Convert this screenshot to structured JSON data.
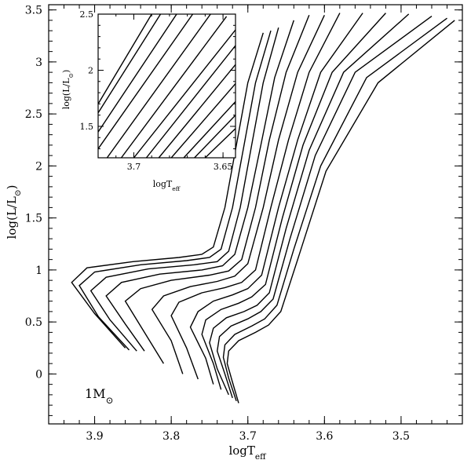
{
  "chart_data": [
    {
      "type": "line",
      "role": "main",
      "xlabel": "logT_eff",
      "ylabel": "log(L/L_⊙)",
      "xlim": [
        3.96,
        3.42
      ],
      "ylim": [
        -0.48,
        3.55
      ],
      "x_reversed": true,
      "x_ticks": [
        "3.9",
        "3.8",
        "3.7",
        "3.6",
        "3.5"
      ],
      "y_ticks": [
        "0",
        "0.5",
        "1",
        "1.5",
        "2",
        "2.5",
        "3",
        "3.5"
      ],
      "x_tick_values": [
        3.9,
        3.8,
        3.7,
        3.6,
        3.5
      ],
      "y_tick_values": [
        0,
        0.5,
        1,
        1.5,
        2,
        2.5,
        3,
        3.5
      ],
      "annotation": {
        "main": "1M",
        "sub": "⊙"
      },
      "series": [
        {
          "x": [
            3.86,
            3.9,
            3.93,
            3.91,
            3.85,
            3.79,
            3.76,
            3.745,
            3.73,
            3.715,
            3.7,
            3.68
          ],
          "y": [
            0.25,
            0.58,
            0.88,
            1.02,
            1.08,
            1.12,
            1.15,
            1.22,
            1.6,
            2.2,
            2.8,
            3.28
          ]
        },
        {
          "x": [
            3.855,
            3.895,
            3.92,
            3.9,
            3.84,
            3.78,
            3.75,
            3.735,
            3.72,
            3.705,
            3.69,
            3.67
          ],
          "y": [
            0.23,
            0.55,
            0.85,
            0.98,
            1.05,
            1.09,
            1.12,
            1.2,
            1.6,
            2.2,
            2.8,
            3.3
          ]
        },
        {
          "x": [
            3.845,
            3.88,
            3.905,
            3.885,
            3.83,
            3.77,
            3.74,
            3.725,
            3.71,
            3.695,
            3.68,
            3.66
          ],
          "y": [
            0.22,
            0.52,
            0.8,
            0.93,
            1.01,
            1.05,
            1.08,
            1.18,
            1.6,
            2.2,
            2.8,
            3.33
          ]
        },
        {
          "x": [
            3.835,
            3.86,
            3.885,
            3.865,
            3.815,
            3.76,
            3.733,
            3.717,
            3.7,
            3.683,
            3.665,
            3.64
          ],
          "y": [
            0.22,
            0.48,
            0.75,
            0.88,
            0.96,
            1.0,
            1.04,
            1.15,
            1.6,
            2.2,
            2.85,
            3.4
          ]
        },
        {
          "x": [
            3.81,
            3.835,
            3.86,
            3.84,
            3.8,
            3.75,
            3.725,
            3.708,
            3.69,
            3.672,
            3.65,
            3.62
          ],
          "y": [
            0.1,
            0.4,
            0.7,
            0.82,
            0.9,
            0.95,
            0.99,
            1.1,
            1.6,
            2.25,
            2.9,
            3.45
          ]
        },
        {
          "x": [
            3.785,
            3.8,
            3.825,
            3.81,
            3.775,
            3.74,
            3.717,
            3.7,
            3.68,
            3.66,
            3.635,
            3.6
          ],
          "y": [
            0.0,
            0.32,
            0.62,
            0.75,
            0.84,
            0.89,
            0.94,
            1.06,
            1.6,
            2.25,
            2.9,
            3.45
          ]
        },
        {
          "x": [
            3.765,
            3.78,
            3.8,
            3.79,
            3.76,
            3.73,
            3.708,
            3.69,
            3.67,
            3.647,
            3.62,
            3.58
          ],
          "y": [
            -0.05,
            0.25,
            0.56,
            0.69,
            0.78,
            0.83,
            0.88,
            1.0,
            1.6,
            2.25,
            2.9,
            3.47
          ]
        },
        {
          "x": [
            3.745,
            3.755,
            3.775,
            3.765,
            3.745,
            3.72,
            3.7,
            3.682,
            3.66,
            3.635,
            3.605,
            3.55
          ],
          "y": [
            -0.1,
            0.15,
            0.45,
            0.6,
            0.7,
            0.76,
            0.82,
            0.95,
            1.6,
            2.25,
            2.9,
            3.47
          ]
        },
        {
          "x": [
            3.735,
            3.745,
            3.76,
            3.755,
            3.735,
            3.712,
            3.695,
            3.677,
            3.655,
            3.628,
            3.59,
            3.52
          ],
          "y": [
            -0.15,
            0.1,
            0.38,
            0.52,
            0.62,
            0.68,
            0.74,
            0.86,
            1.5,
            2.2,
            2.9,
            3.47
          ]
        },
        {
          "x": [
            3.725,
            3.74,
            3.75,
            3.745,
            3.728,
            3.705,
            3.688,
            3.672,
            3.65,
            3.62,
            3.575,
            3.49
          ],
          "y": [
            -0.2,
            0.05,
            0.3,
            0.44,
            0.54,
            0.6,
            0.66,
            0.78,
            1.4,
            2.15,
            2.9,
            3.46
          ]
        },
        {
          "x": [
            3.72,
            3.73,
            3.74,
            3.737,
            3.722,
            3.7,
            3.683,
            3.667,
            3.645,
            3.612,
            3.56,
            3.46
          ],
          "y": [
            -0.23,
            0.0,
            0.22,
            0.36,
            0.46,
            0.53,
            0.6,
            0.72,
            1.3,
            2.1,
            2.9,
            3.44
          ]
        },
        {
          "x": [
            3.715,
            3.725,
            3.732,
            3.73,
            3.717,
            3.695,
            3.678,
            3.662,
            3.64,
            3.605,
            3.545,
            3.44
          ],
          "y": [
            -0.26,
            -0.04,
            0.16,
            0.28,
            0.38,
            0.46,
            0.53,
            0.66,
            1.2,
            2.0,
            2.85,
            3.42
          ]
        },
        {
          "x": [
            3.712,
            3.72,
            3.727,
            3.725,
            3.712,
            3.69,
            3.673,
            3.657,
            3.635,
            3.598,
            3.53,
            3.43
          ],
          "y": [
            -0.28,
            -0.08,
            0.1,
            0.22,
            0.32,
            0.4,
            0.47,
            0.6,
            1.1,
            1.95,
            2.8,
            3.4
          ]
        }
      ]
    },
    {
      "type": "line",
      "role": "inset",
      "xlabel": "logT_eff",
      "ylabel": "log(L/L_⊙)",
      "xlim": [
        3.72,
        3.643
      ],
      "ylim": [
        1.22,
        2.5
      ],
      "x_reversed": true,
      "x_ticks": [
        "3.7",
        "3.65"
      ],
      "y_ticks": [
        "1.5",
        "2",
        "2.5"
      ],
      "x_tick_values": [
        3.7,
        3.65
      ],
      "y_tick_values": [
        1.5,
        2,
        2.5
      ],
      "series": [
        {
          "x": [
            3.72,
            3.69
          ],
          "y": [
            1.7,
            2.5
          ]
        },
        {
          "x": [
            3.72,
            3.685
          ],
          "y": [
            1.62,
            2.5
          ]
        },
        {
          "x": [
            3.72,
            3.676
          ],
          "y": [
            1.45,
            2.5
          ]
        },
        {
          "x": [
            3.72,
            3.667
          ],
          "y": [
            1.3,
            2.5
          ]
        },
        {
          "x": [
            3.715,
            3.657
          ],
          "y": [
            1.22,
            2.5
          ]
        },
        {
          "x": [
            3.707,
            3.648
          ],
          "y": [
            1.22,
            2.48
          ]
        },
        {
          "x": [
            3.7,
            3.643
          ],
          "y": [
            1.22,
            2.36
          ]
        },
        {
          "x": [
            3.693,
            3.643
          ],
          "y": [
            1.22,
            2.22
          ]
        },
        {
          "x": [
            3.686,
            3.643
          ],
          "y": [
            1.22,
            2.05
          ]
        },
        {
          "x": [
            3.679,
            3.643
          ],
          "y": [
            1.22,
            1.88
          ]
        },
        {
          "x": [
            3.672,
            3.643
          ],
          "y": [
            1.22,
            1.72
          ]
        },
        {
          "x": [
            3.666,
            3.643
          ],
          "y": [
            1.22,
            1.6
          ]
        },
        {
          "x": [
            3.66,
            3.643
          ],
          "y": [
            1.22,
            1.48
          ]
        }
      ]
    }
  ]
}
